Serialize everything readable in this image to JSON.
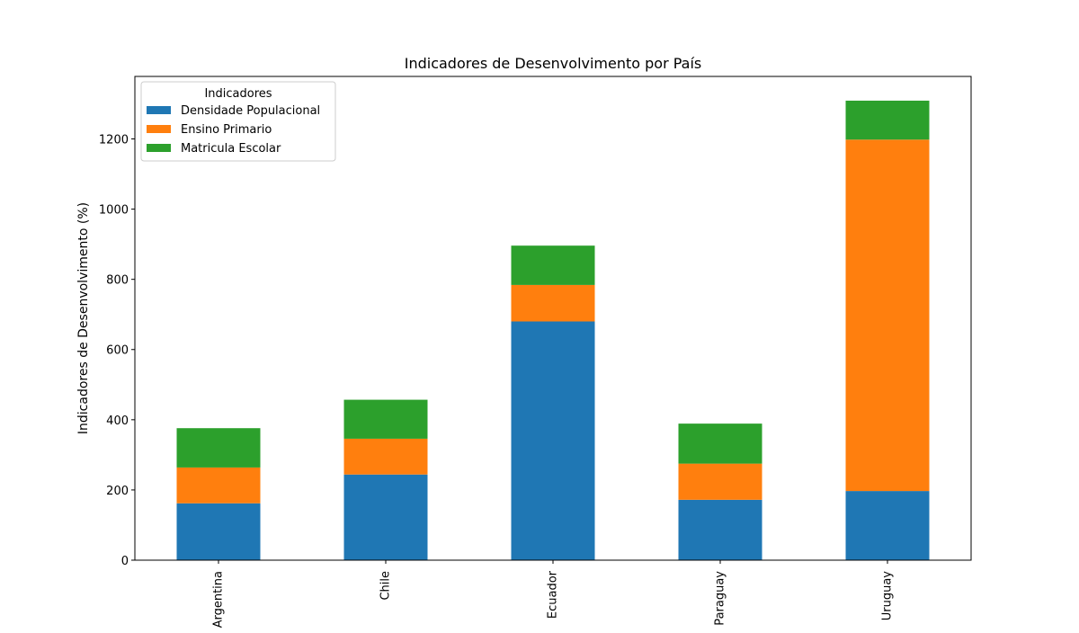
{
  "chart_data": {
    "type": "bar",
    "stacked": true,
    "title": "Indicadores de Desenvolvimento por País",
    "xlabel": "",
    "ylabel": "Indicadores de Desenvolvimento (%)",
    "categories": [
      "Argentina",
      "Chile",
      "Ecuador",
      "Paraguay",
      "Uruguay"
    ],
    "series": [
      {
        "name": "Densidade Populacional",
        "color": "#1f77b4",
        "values": [
          162,
          244,
          680,
          172,
          197
        ]
      },
      {
        "name": "Ensino Primario",
        "color": "#ff7f0e",
        "values": [
          102,
          102,
          104,
          103,
          1001
        ]
      },
      {
        "name": "Matricula Escolar",
        "color": "#2ca02c",
        "values": [
          112,
          111,
          112,
          114,
          111
        ]
      }
    ],
    "ylim": [
      0,
      1378
    ],
    "yticks": [
      0,
      200,
      400,
      600,
      800,
      1000,
      1200
    ],
    "legend": {
      "title": "Indicadores",
      "placement": "top-left"
    },
    "grid": false
  }
}
